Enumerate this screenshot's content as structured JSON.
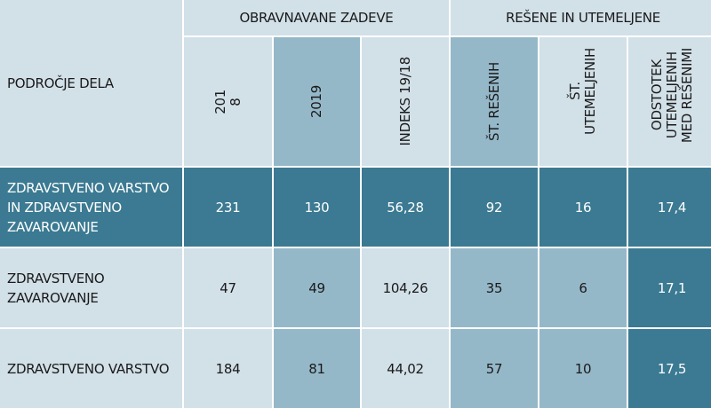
{
  "header": {
    "area_label": "PODROČJE DELA",
    "group_treated": "OBRAVNAVANE ZADEVE",
    "group_resolved": "REŠENE IN UTEMELJENE",
    "col_2018": "201\n8",
    "col_2019": "2019",
    "col_index": "INDEKS 19/18",
    "col_resolved": "ŠT. REŠENIH",
    "col_justified": "ŠT.\nUTEMELJENIH",
    "col_percent": "ODSTOTEK\nUTEMELJENIH\nMED REŠENIMI"
  },
  "rows": [
    {
      "area": "ZDRAVSTVENO VARSTVO IN ZDRAVSTVENO ZAVAROVANJE",
      "y2018": "231",
      "y2019": "130",
      "index": "56,28",
      "resolved": "92",
      "justified": "16",
      "percent": "17,4"
    },
    {
      "area": "ZDRAVSTVENO ZAVAROVANJE",
      "y2018": "47",
      "y2019": "49",
      "index": "104,26",
      "resolved": "35",
      "justified": "6",
      "percent": "17,1"
    },
    {
      "area": "ZDRAVSTVENO VARSTVO",
      "y2018": "184",
      "y2019": "81",
      "index": "44,02",
      "resolved": "57",
      "justified": "10",
      "percent": "17,5"
    }
  ],
  "colors": {
    "light": "#d2e0e8",
    "mid": "#95b8c9",
    "dark": "#3b7a92"
  }
}
